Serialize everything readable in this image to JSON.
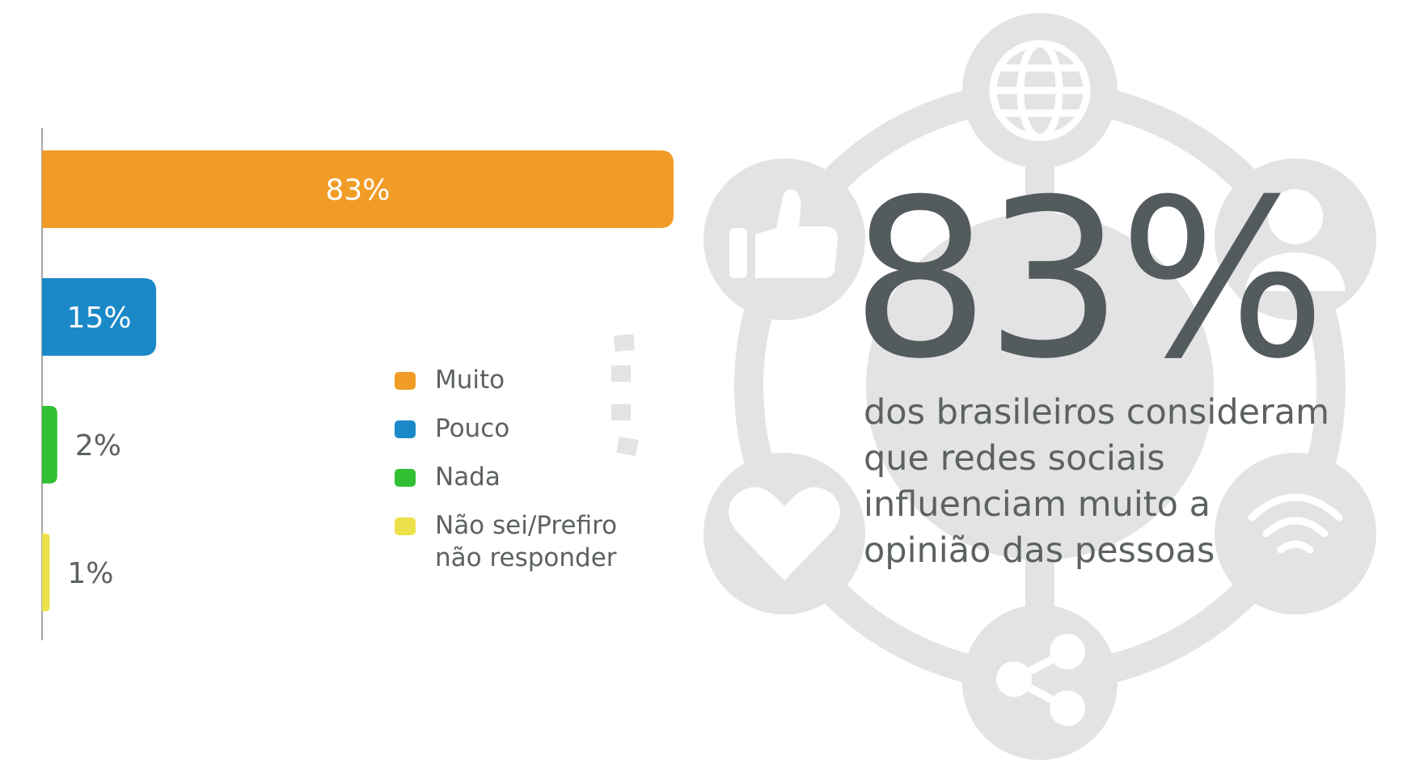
{
  "chart_data": {
    "type": "bar",
    "orientation": "horizontal",
    "categories": [
      "Muito",
      "Pouco",
      "Nada",
      "Não sei/Prefiro não responder"
    ],
    "values": [
      83,
      15,
      2,
      1
    ],
    "value_labels": [
      "83%",
      "15%",
      "2%",
      "1%"
    ],
    "colors": [
      "#f19c26",
      "#1b89c8",
      "#31c033",
      "#ece14a"
    ],
    "xlim": [
      0,
      100
    ],
    "grid": false,
    "legend_position": "right"
  },
  "legend": [
    {
      "label": "Muito",
      "color": "#f19c26"
    },
    {
      "label": "Pouco",
      "color": "#1b89c8"
    },
    {
      "label": "Nada",
      "color": "#31c033"
    },
    {
      "label": "Não sei/Prefiro não responder",
      "color": "#ece14a"
    }
  ],
  "highlight": {
    "value": "83%",
    "caption": "dos brasileiros consideram que redes sociais influenciam muito a opinião das pessoas"
  },
  "decoration": {
    "icons": [
      "globe-icon",
      "user-icon",
      "wifi-icon",
      "share-icon",
      "heart-icon",
      "thumbs-up-icon"
    ]
  }
}
